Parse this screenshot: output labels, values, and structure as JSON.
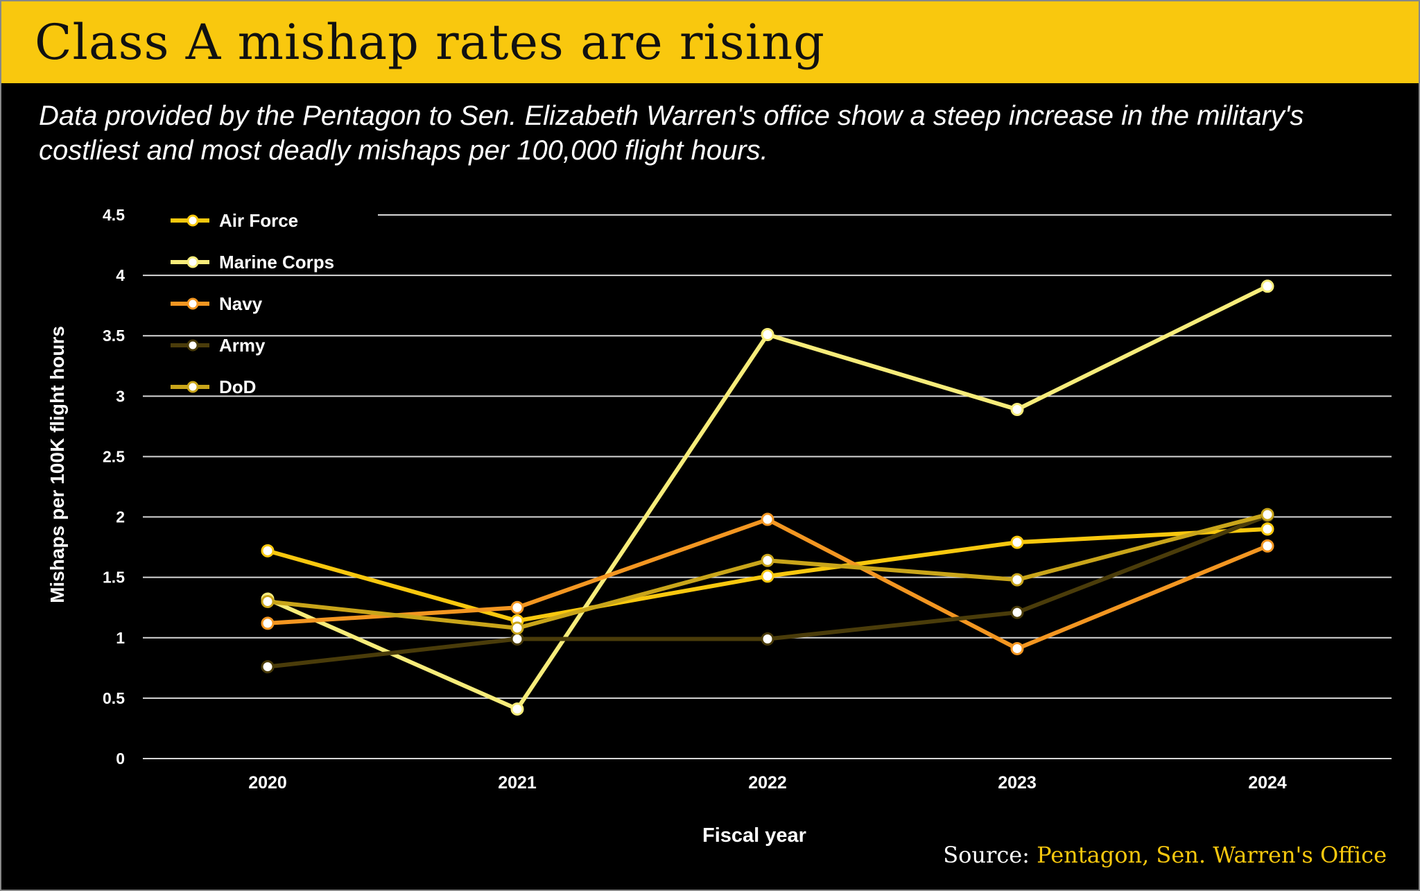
{
  "header": {
    "title": "Class A mishap rates are rising"
  },
  "subtitle": "Data provided by the Pentagon to Sen. Elizabeth Warren's office show a steep increase in the military's costliest and most deadly mishaps per 100,000 flight hours.",
  "source": {
    "label": "Source: ",
    "text": "Pentagon, Sen. Warren's Office"
  },
  "chart_data": {
    "type": "line",
    "title": "Class A mishap rates are rising",
    "xlabel": "Fiscal year",
    "ylabel": "Mishaps per 100K flight hours",
    "categories": [
      "2020",
      "2021",
      "2022",
      "2023",
      "2024"
    ],
    "ylim": [
      0,
      4.5
    ],
    "yticks": [
      "0",
      "0.5",
      "1",
      "1.5",
      "2",
      "2.5",
      "3",
      "3.5",
      "4",
      "4.5"
    ],
    "grid": true,
    "legend": "top-left",
    "series": [
      {
        "name": "Air Force",
        "color": "#f9c80e",
        "values": [
          1.72,
          1.14,
          1.51,
          1.79,
          1.9
        ]
      },
      {
        "name": "Marine Corps",
        "color": "#f7ec7a",
        "values": [
          1.32,
          0.41,
          3.51,
          2.89,
          3.91
        ]
      },
      {
        "name": "Navy",
        "color": "#f39621",
        "values": [
          1.12,
          1.25,
          1.98,
          0.91,
          1.76
        ]
      },
      {
        "name": "Army",
        "color": "#4a3c0a",
        "values": [
          0.76,
          0.99,
          0.99,
          1.21,
          2.01
        ]
      },
      {
        "name": "DoD",
        "color": "#c9a51a",
        "values": [
          1.3,
          1.08,
          1.64,
          1.48,
          2.02
        ]
      }
    ]
  }
}
